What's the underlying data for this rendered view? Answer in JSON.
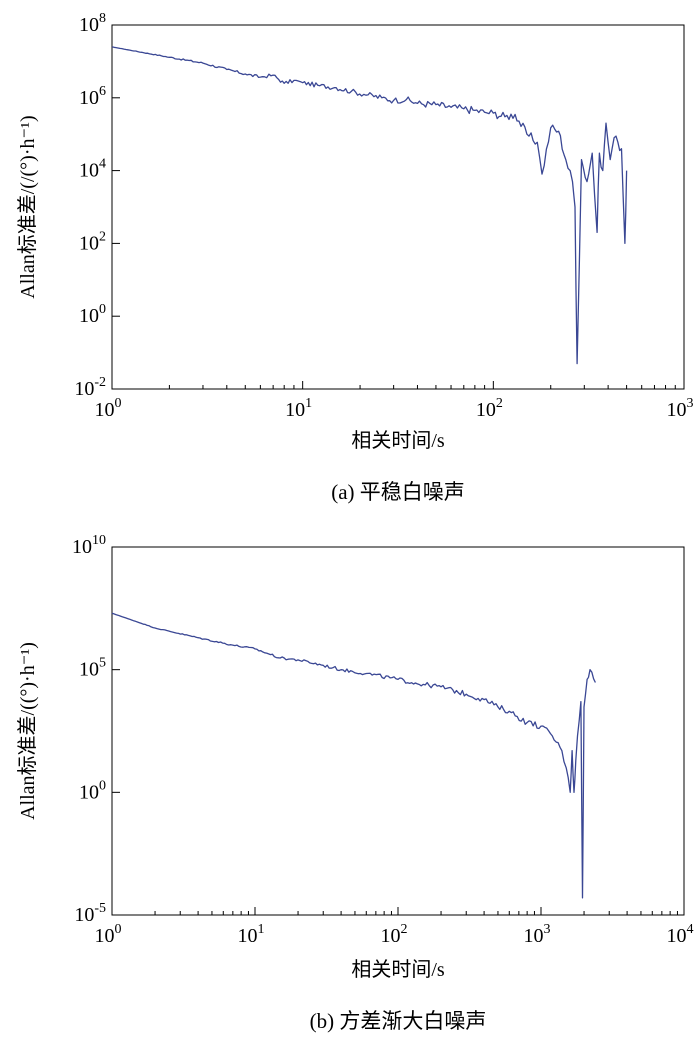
{
  "colors": {
    "line": "#3a4794",
    "axis": "#000000"
  },
  "chart_data": [
    {
      "type": "line",
      "caption": "(a) 平稳白噪声",
      "xlabel": "相关时间/s",
      "ylabel": "Allan标准差/(/(°)·h⁻¹)",
      "x_scale": "log",
      "y_scale": "log",
      "xlim": [
        1,
        1000
      ],
      "ylim": [
        0.01,
        100000000
      ],
      "x_ticks": [
        {
          "value": 1,
          "base": "10",
          "exp": "0"
        },
        {
          "value": 10,
          "base": "10",
          "exp": "1"
        },
        {
          "value": 100,
          "base": "10",
          "exp": "2"
        },
        {
          "value": 1000,
          "base": "10",
          "exp": "3"
        }
      ],
      "y_ticks": [
        {
          "value": 0.01,
          "base": "10",
          "exp": "-2"
        },
        {
          "value": 1,
          "base": "10",
          "exp": "0"
        },
        {
          "value": 100,
          "base": "10",
          "exp": "2"
        },
        {
          "value": 10000,
          "base": "10",
          "exp": "4"
        },
        {
          "value": 1000000,
          "base": "10",
          "exp": "6"
        },
        {
          "value": 100000000,
          "base": "10",
          "exp": "8"
        }
      ],
      "grid": false,
      "series": [
        {
          "x": [
            1,
            2,
            3,
            4,
            5,
            6,
            7,
            8,
            9,
            10,
            12,
            15,
            18,
            22,
            26,
            30,
            35,
            40,
            50,
            60,
            70,
            80,
            90,
            100,
            115,
            130,
            150,
            170,
            180,
            200,
            220,
            240,
            260,
            268,
            275,
            290,
            310,
            330,
            350,
            360,
            375,
            390,
            410,
            430,
            450,
            470,
            490,
            500
          ],
          "y": [
            25000000,
            13000000,
            9000000,
            6000000,
            4500000,
            3700000,
            4200000,
            2500000,
            3000000,
            2600000,
            2200000,
            1900000,
            1500000,
            1200000,
            1000000,
            850000,
            900000,
            700000,
            650000,
            550000,
            500000,
            450000,
            400000,
            380000,
            300000,
            350000,
            100000,
            60000,
            8000,
            150000,
            120000,
            20000,
            5000,
            1000,
            0.05,
            20000,
            5000,
            30000,
            200,
            30000,
            10000,
            200000,
            20000,
            80000,
            60000,
            40000,
            100,
            10000
          ]
        }
      ]
    },
    {
      "type": "line",
      "caption": "(b) 方差渐大白噪声",
      "xlabel": "相关时间/s",
      "ylabel": "Allan标准差/((°)·h⁻¹)",
      "x_scale": "log",
      "y_scale": "log",
      "xlim": [
        1,
        10000
      ],
      "ylim": [
        1e-05,
        10000000000
      ],
      "x_ticks": [
        {
          "value": 1,
          "base": "10",
          "exp": "0"
        },
        {
          "value": 10,
          "base": "10",
          "exp": "1"
        },
        {
          "value": 100,
          "base": "10",
          "exp": "2"
        },
        {
          "value": 1000,
          "base": "10",
          "exp": "3"
        },
        {
          "value": 10000,
          "base": "10",
          "exp": "4"
        }
      ],
      "y_ticks": [
        {
          "value": 1e-05,
          "base": "10",
          "exp": "-5"
        },
        {
          "value": 1,
          "base": "10",
          "exp": "0"
        },
        {
          "value": 100000,
          "base": "10",
          "exp": "5"
        },
        {
          "value": 10000000000,
          "base": "10",
          "exp": "10"
        }
      ],
      "grid": false,
      "series": [
        {
          "x": [
            1,
            2,
            4,
            7,
            10,
            15,
            20,
            30,
            40,
            60,
            100,
            150,
            200,
            300,
            400,
            500,
            600,
            800,
            1000,
            1200,
            1400,
            1500,
            1600,
            1650,
            1700,
            1750,
            1800,
            1900,
            1950,
            2000,
            2100,
            2200,
            2400
          ],
          "y": [
            20000000,
            5000000,
            2000000,
            1000000,
            700000,
            300000,
            250000,
            150000,
            100000,
            70000,
            40000,
            25000,
            20000,
            10000,
            6000,
            3000,
            2000,
            700,
            500,
            200,
            50,
            10,
            1,
            50,
            1,
            20,
            200,
            5000,
            5e-05,
            3000,
            40000,
            100000,
            30000
          ]
        }
      ]
    }
  ]
}
